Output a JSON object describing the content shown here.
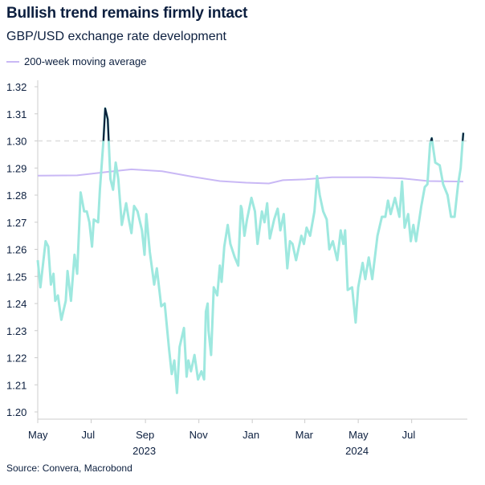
{
  "title": "Bullish trend remains firmly intact",
  "subtitle": "GBP/USD exchange rate development",
  "source": "Source: Convera, Macrobond",
  "colors": {
    "series": "#9ee8df",
    "highlight": "#0a1f3a",
    "moving_average": "#c9b8f5",
    "reference_line": "#dddddd",
    "text": "#0c1f3f"
  },
  "chart_data": {
    "type": "line",
    "title": "Bullish trend remains firmly intact",
    "subtitle": "GBP/USD exchange rate development",
    "xlabel": "",
    "ylabel": "",
    "ylim": [
      1.2,
      1.32
    ],
    "yticks": [
      "1.20",
      "1.21",
      "1.22",
      "1.23",
      "1.24",
      "1.25",
      "1.26",
      "1.27",
      "1.28",
      "1.29",
      "1.30",
      "1.31",
      "1.32"
    ],
    "xlim": [
      "2023-05-01",
      "2024-08-29"
    ],
    "xticks": [
      {
        "date": "2023-05-01",
        "label": "May"
      },
      {
        "date": "2023-07-01",
        "label": "Jul"
      },
      {
        "date": "2023-09-01",
        "label": "Sep"
      },
      {
        "date": "2023-11-01",
        "label": "Nov"
      },
      {
        "date": "2024-01-01",
        "label": "Jan"
      },
      {
        "date": "2024-03-01",
        "label": "Mar"
      },
      {
        "date": "2024-05-01",
        "label": "May"
      },
      {
        "date": "2024-07-01",
        "label": "Jul"
      }
    ],
    "year_labels": [
      {
        "date": "2023-09-01",
        "label": "2023"
      },
      {
        "date": "2024-05-01",
        "label": "2024"
      }
    ],
    "reference_line": 1.3,
    "grid": false,
    "legend": {
      "position": "top-left",
      "entries": [
        "200-week moving average"
      ]
    },
    "highlight_above": 1.3,
    "series": [
      {
        "key": "gbpusd",
        "data": [
          [
            "2023-05-01",
            1.256
          ],
          [
            "2023-05-04",
            1.246
          ],
          [
            "2023-05-10",
            1.263
          ],
          [
            "2023-05-13",
            1.261
          ],
          [
            "2023-05-16",
            1.247
          ],
          [
            "2023-05-19",
            1.251
          ],
          [
            "2023-05-21",
            1.241
          ],
          [
            "2023-05-24",
            1.243
          ],
          [
            "2023-05-28",
            1.234
          ],
          [
            "2023-06-02",
            1.241
          ],
          [
            "2023-06-04",
            1.252
          ],
          [
            "2023-06-08",
            1.241
          ],
          [
            "2023-06-12",
            1.258
          ],
          [
            "2023-06-15",
            1.251
          ],
          [
            "2023-06-19",
            1.281
          ],
          [
            "2023-06-23",
            1.274
          ],
          [
            "2023-06-26",
            1.274
          ],
          [
            "2023-06-29",
            1.27
          ],
          [
            "2023-07-02",
            1.261
          ],
          [
            "2023-07-04",
            1.271
          ],
          [
            "2023-07-09",
            1.27
          ],
          [
            "2023-07-11",
            1.282
          ],
          [
            "2023-07-15",
            1.3
          ],
          [
            "2023-07-17",
            1.312
          ],
          [
            "2023-07-20",
            1.308
          ],
          [
            "2023-07-23",
            1.286
          ],
          [
            "2023-07-26",
            1.282
          ],
          [
            "2023-07-29",
            1.292
          ],
          [
            "2023-08-01",
            1.286
          ],
          [
            "2023-08-05",
            1.269
          ],
          [
            "2023-08-10",
            1.277
          ],
          [
            "2023-08-13",
            1.271
          ],
          [
            "2023-08-16",
            1.266
          ],
          [
            "2023-08-19",
            1.276
          ],
          [
            "2023-08-23",
            1.274
          ],
          [
            "2023-08-28",
            1.267
          ],
          [
            "2023-08-31",
            1.258
          ],
          [
            "2023-09-02",
            1.273
          ],
          [
            "2023-09-06",
            1.259
          ],
          [
            "2023-09-11",
            1.247
          ],
          [
            "2023-09-14",
            1.253
          ],
          [
            "2023-09-19",
            1.239
          ],
          [
            "2023-09-23",
            1.24
          ],
          [
            "2023-09-28",
            1.223
          ],
          [
            "2023-10-01",
            1.214
          ],
          [
            "2023-10-04",
            1.219
          ],
          [
            "2023-10-07",
            1.207
          ],
          [
            "2023-10-10",
            1.224
          ],
          [
            "2023-10-15",
            1.231
          ],
          [
            "2023-10-18",
            1.213
          ],
          [
            "2023-10-20",
            1.219
          ],
          [
            "2023-10-23",
            1.215
          ],
          [
            "2023-10-27",
            1.221
          ],
          [
            "2023-10-31",
            1.212
          ],
          [
            "2023-11-04",
            1.215
          ],
          [
            "2023-11-07",
            1.212
          ],
          [
            "2023-11-09",
            1.237
          ],
          [
            "2023-11-11",
            1.24
          ],
          [
            "2023-11-12",
            1.23
          ],
          [
            "2023-11-15",
            1.221
          ],
          [
            "2023-11-18",
            1.246
          ],
          [
            "2023-11-22",
            1.243
          ],
          [
            "2023-11-25",
            1.254
          ],
          [
            "2023-11-27",
            1.248
          ],
          [
            "2023-11-30",
            1.261
          ],
          [
            "2023-12-04",
            1.269
          ],
          [
            "2023-12-07",
            1.262
          ],
          [
            "2023-12-12",
            1.257
          ],
          [
            "2023-12-16",
            1.254
          ],
          [
            "2023-12-19",
            1.276
          ],
          [
            "2023-12-20",
            1.275
          ],
          [
            "2023-12-23",
            1.265
          ],
          [
            "2023-12-26",
            1.271
          ],
          [
            "2023-12-31",
            1.279
          ],
          [
            "2024-01-04",
            1.274
          ],
          [
            "2024-01-07",
            1.262
          ],
          [
            "2024-01-12",
            1.274
          ],
          [
            "2024-01-15",
            1.27
          ],
          [
            "2024-01-18",
            1.277
          ],
          [
            "2024-01-21",
            1.264
          ],
          [
            "2024-01-26",
            1.271
          ],
          [
            "2024-01-30",
            1.275
          ],
          [
            "2024-02-02",
            1.267
          ],
          [
            "2024-02-06",
            1.273
          ],
          [
            "2024-02-10",
            1.253
          ],
          [
            "2024-02-13",
            1.263
          ],
          [
            "2024-02-16",
            1.262
          ],
          [
            "2024-02-20",
            1.256
          ],
          [
            "2024-02-26",
            1.265
          ],
          [
            "2024-02-29",
            1.262
          ],
          [
            "2024-03-03",
            1.268
          ],
          [
            "2024-03-07",
            1.265
          ],
          [
            "2024-03-12",
            1.274
          ],
          [
            "2024-03-15",
            1.287
          ],
          [
            "2024-03-18",
            1.28
          ],
          [
            "2024-03-22",
            1.274
          ],
          [
            "2024-03-26",
            1.271
          ],
          [
            "2024-03-29",
            1.26
          ],
          [
            "2024-04-02",
            1.263
          ],
          [
            "2024-04-07",
            1.256
          ],
          [
            "2024-04-11",
            1.267
          ],
          [
            "2024-04-14",
            1.262
          ],
          [
            "2024-04-16",
            1.267
          ],
          [
            "2024-04-19",
            1.245
          ],
          [
            "2024-04-24",
            1.246
          ],
          [
            "2024-04-28",
            1.233
          ],
          [
            "2024-05-01",
            1.246
          ],
          [
            "2024-05-06",
            1.255
          ],
          [
            "2024-05-09",
            1.249
          ],
          [
            "2024-05-13",
            1.257
          ],
          [
            "2024-05-17",
            1.249
          ],
          [
            "2024-05-23",
            1.265
          ],
          [
            "2024-05-28",
            1.272
          ],
          [
            "2024-06-01",
            1.272
          ],
          [
            "2024-06-04",
            1.278
          ],
          [
            "2024-06-07",
            1.273
          ],
          [
            "2024-06-12",
            1.279
          ],
          [
            "2024-06-17",
            1.272
          ],
          [
            "2024-06-20",
            1.285
          ],
          [
            "2024-06-23",
            1.268
          ],
          [
            "2024-06-27",
            1.273
          ],
          [
            "2024-06-30",
            1.263
          ],
          [
            "2024-07-03",
            1.269
          ],
          [
            "2024-07-06",
            1.263
          ],
          [
            "2024-07-12",
            1.276
          ],
          [
            "2024-07-16",
            1.283
          ],
          [
            "2024-07-19",
            1.284
          ],
          [
            "2024-07-22",
            1.299
          ],
          [
            "2024-07-24",
            1.301
          ],
          [
            "2024-07-28",
            1.292
          ],
          [
            "2024-08-02",
            1.291
          ],
          [
            "2024-08-06",
            1.284
          ],
          [
            "2024-08-11",
            1.28
          ],
          [
            "2024-08-15",
            1.272
          ],
          [
            "2024-08-19",
            1.272
          ],
          [
            "2024-08-23",
            1.284
          ],
          [
            "2024-08-26",
            1.29
          ],
          [
            "2024-08-28",
            1.299
          ],
          [
            "2024-08-29",
            1.303
          ]
        ]
      },
      {
        "key": "ma",
        "name": "200-week moving average",
        "data": [
          [
            "2023-05-01",
            1.2872
          ],
          [
            "2023-06-15",
            1.2873
          ],
          [
            "2023-07-20",
            1.2886
          ],
          [
            "2023-08-16",
            1.2895
          ],
          [
            "2023-09-20",
            1.2888
          ],
          [
            "2023-10-25",
            1.2868
          ],
          [
            "2023-11-25",
            1.2852
          ],
          [
            "2023-12-25",
            1.2846
          ],
          [
            "2024-01-20",
            1.2843
          ],
          [
            "2024-02-05",
            1.2855
          ],
          [
            "2024-03-01",
            1.2858
          ],
          [
            "2024-04-01",
            1.2866
          ],
          [
            "2024-05-15",
            1.2866
          ],
          [
            "2024-06-20",
            1.2862
          ],
          [
            "2024-07-20",
            1.2852
          ],
          [
            "2024-08-29",
            1.285
          ]
        ]
      }
    ]
  }
}
